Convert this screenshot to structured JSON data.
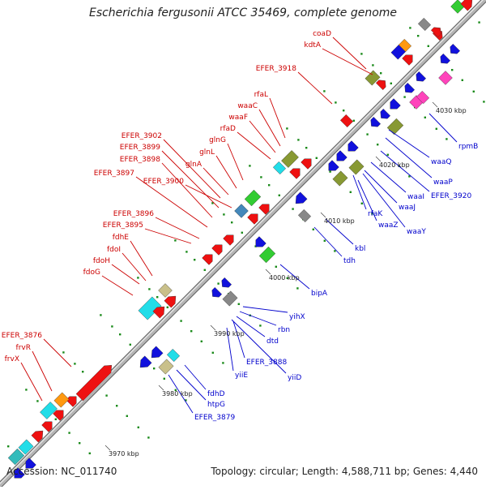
{
  "title": "Escherichia fergusonii ATCC 35469, complete genome",
  "footer": {
    "accession": "Accession: NC_011740",
    "topology": "Topology: circular; Length: 4,588,711 bp; Genes: 4,440"
  },
  "colors": {
    "forward_label": "#cc0000",
    "reverse_label": "#0000cc",
    "backbone": "#9a9a9a",
    "tick": "#1a8a1a"
  },
  "kbp_ticks": [
    "3970 kbp",
    "3980 kbp",
    "3990 kbp",
    "4000 kbp",
    "4010 kbp",
    "4020 kbp",
    "4030 kbp"
  ],
  "forward_labels": [
    "coaD",
    "kdtA",
    "EFER_3918",
    "rfaL",
    "waaC",
    "waaF",
    "rfaD",
    "glnG",
    "glnL",
    "glnA",
    "EFER_3902",
    "EFER_3899",
    "EFER_3898",
    "EFER_3897",
    "EFER_3900",
    "EFER_3896",
    "EFER_3895",
    "fdhE",
    "fdoI",
    "fdoH",
    "fdoG",
    "EFER_3876",
    "frvR",
    "frvX"
  ],
  "reverse_labels": [
    "rpmB",
    "waaQ",
    "waaP",
    "EFER_3920",
    "waaI",
    "waaJ",
    "rfaK",
    "waaZ",
    "waaY",
    "kbl",
    "tdh",
    "bipA",
    "yihX",
    "rbn",
    "dtd",
    "EFER_3888",
    "yiiD",
    "yiiE",
    "fdhD",
    "htpG",
    "EFER_3879"
  ]
}
